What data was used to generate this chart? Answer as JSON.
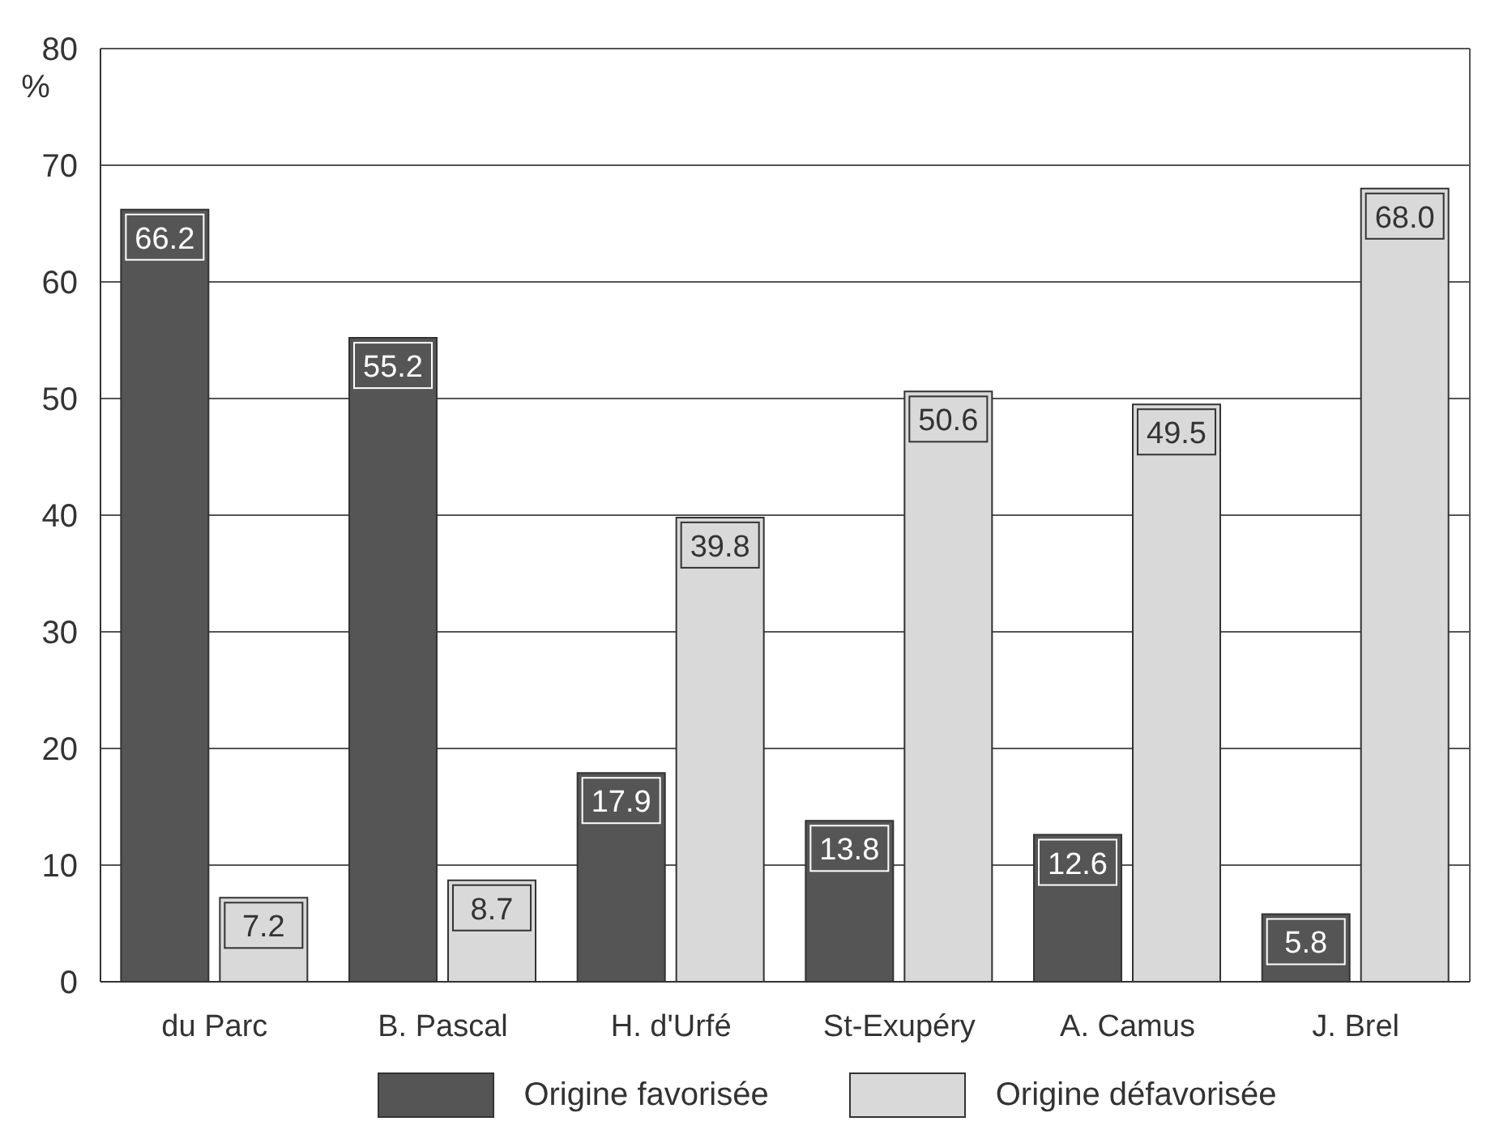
{
  "chart_data": {
    "type": "bar",
    "ylabel": "%",
    "categories": [
      "du Parc",
      "B. Pascal",
      "H. d'Urfé",
      "St-Exupéry",
      "A. Camus",
      "J. Brel"
    ],
    "series": [
      {
        "name": "Origine favorisée",
        "color": "#555555",
        "values": [
          66.2,
          55.2,
          17.9,
          13.8,
          12.6,
          5.8
        ],
        "value_labels": [
          "66.2",
          "55.2",
          "17.9",
          "13.8",
          "12.6",
          "5.8"
        ]
      },
      {
        "name": "Origine défavorisée",
        "color": "#d9d9d9",
        "values": [
          7.2,
          8.7,
          39.8,
          50.6,
          49.5,
          68.0
        ],
        "value_labels": [
          "7.2",
          "8.7",
          "39.8",
          "50.6",
          "49.5",
          "68.0"
        ]
      }
    ],
    "ylim": [
      0,
      80
    ],
    "yticks": [
      0,
      10,
      20,
      30,
      40,
      50,
      60,
      70,
      80
    ],
    "grid": "y",
    "legend": "bottom"
  }
}
